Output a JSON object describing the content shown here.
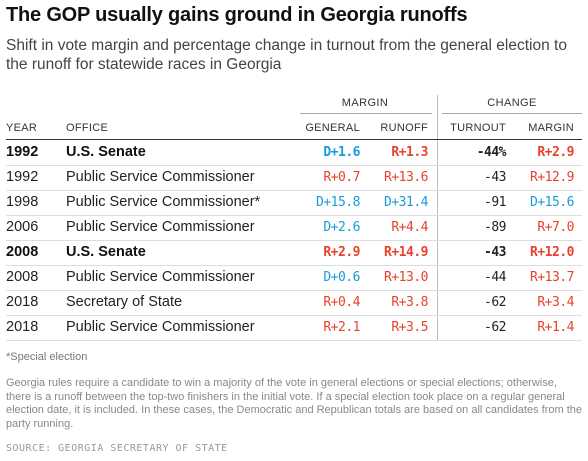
{
  "title": "The GOP usually gains ground in Georgia runoffs",
  "subtitle": "Shift in vote margin and percentage change in turnout from the general election to the runoff for statewide races in Georgia",
  "groups": {
    "margin": "MARGIN",
    "change": "CHANGE"
  },
  "columns": {
    "year": "YEAR",
    "office": "OFFICE",
    "general": "GENERAL",
    "runoff": "RUNOFF",
    "turnout": "TURNOUT",
    "margin": "MARGIN"
  },
  "colors": {
    "dem": "#1a9ad6",
    "rep": "#e8412c"
  },
  "rows": [
    {
      "year": "1992",
      "office": "U.S. Senate",
      "general": "D+1.6",
      "runoff": "R+1.3",
      "turnout": "-44%",
      "margin": "R+2.9",
      "bold": true
    },
    {
      "year": "1992",
      "office": "Public Service Commissioner",
      "general": "R+0.7",
      "runoff": "R+13.6",
      "turnout": "-43",
      "margin": "R+12.9",
      "bold": false
    },
    {
      "year": "1998",
      "office": "Public Service Commissioner*",
      "general": "D+15.8",
      "runoff": "D+31.4",
      "turnout": "-91",
      "margin": "D+15.6",
      "bold": false
    },
    {
      "year": "2006",
      "office": "Public Service Commissioner",
      "general": "D+2.6",
      "runoff": "R+4.4",
      "turnout": "-89",
      "margin": "R+7.0",
      "bold": false
    },
    {
      "year": "2008",
      "office": "U.S. Senate",
      "general": "R+2.9",
      "runoff": "R+14.9",
      "turnout": "-43",
      "margin": "R+12.0",
      "bold": true
    },
    {
      "year": "2008",
      "office": "Public Service Commissioner",
      "general": "D+0.6",
      "runoff": "R+13.0",
      "turnout": "-44",
      "margin": "R+13.7",
      "bold": false
    },
    {
      "year": "2018",
      "office": "Secretary of State",
      "general": "R+0.4",
      "runoff": "R+3.8",
      "turnout": "-62",
      "margin": "R+3.4",
      "bold": false
    },
    {
      "year": "2018",
      "office": "Public Service Commissioner",
      "general": "R+2.1",
      "runoff": "R+3.5",
      "turnout": "-62",
      "margin": "R+1.4",
      "bold": false
    }
  ],
  "footnote": "*Special election",
  "note": "Georgia rules require a candidate to win a majority of the vote in general elections or special elections; otherwise, there is a runoff between the top-two finishers in the initial vote. If a special election took place on a regular general election date, it is included. In these cases, the Democratic and Republican totals are based on all candidates from the party running.",
  "source": "SOURCE: GEORGIA SECRETARY OF STATE"
}
